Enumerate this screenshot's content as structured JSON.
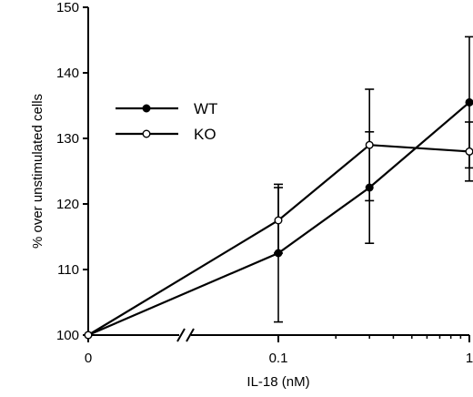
{
  "chart_data": {
    "type": "line",
    "xlabel": "IL-18 (nM)",
    "ylabel": "% over unstimulated cells",
    "x_scale": "log with axis break",
    "ylim": [
      100,
      150
    ],
    "yticks": [
      100,
      110,
      120,
      130,
      140,
      150
    ],
    "xticks": [
      {
        "value": 0,
        "label": "0"
      },
      {
        "value": 0.1,
        "label": "0.1"
      },
      {
        "value": 1,
        "label": "1"
      }
    ],
    "legend_position": "top-left",
    "grid": false,
    "series": [
      {
        "name": "WT",
        "marker": "filled-circle",
        "points": [
          {
            "x": 0,
            "y": 100,
            "err": 0
          },
          {
            "x": 0.1,
            "y": 112.5,
            "err": 10.5
          },
          {
            "x": 0.3,
            "y": 122.5,
            "err": 8.5
          },
          {
            "x": 1,
            "y": 135.5,
            "err": 10
          }
        ]
      },
      {
        "name": "KO",
        "marker": "open-circle",
        "points": [
          {
            "x": 0,
            "y": 100,
            "err": 0
          },
          {
            "x": 0.1,
            "y": 117.5,
            "err": 5
          },
          {
            "x": 0.3,
            "y": 129,
            "err": 8.5
          },
          {
            "x": 1,
            "y": 128,
            "err": 4.5
          }
        ]
      }
    ]
  }
}
